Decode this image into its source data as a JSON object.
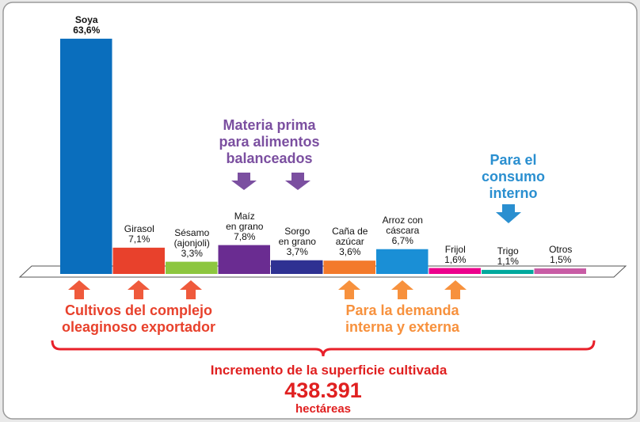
{
  "chart_data": {
    "type": "bar",
    "categories": [
      "Soya",
      "Girasol",
      "Sésamo\n(ajonjoli)",
      "Maíz\nen grano",
      "Sorgo\nen grano",
      "Caña de\nazúcar",
      "Arroz con\ncáscara",
      "Frijol",
      "Trigo",
      "Otros"
    ],
    "values": [
      63.6,
      7.1,
      3.3,
      7.8,
      3.7,
      3.6,
      6.7,
      1.6,
      1.1,
      1.5
    ],
    "value_labels": [
      "63,6%",
      "7,1%",
      "3,3%",
      "7,8%",
      "3,7%",
      "3,6%",
      "6,7%",
      "1,6%",
      "1,1%",
      "1,5%"
    ],
    "colors": [
      "#0a6ebd",
      "#e8412c",
      "#8dc63f",
      "#6a2c91",
      "#2e3192",
      "#f37a2b",
      "#1a8fd6",
      "#ec008c",
      "#00a99d",
      "#c85ca5"
    ],
    "ylim": [
      0,
      64
    ],
    "annotations": [
      "Materia prima\npara alimentos\nbalanceados",
      "Para el\nconsumo\ninterno",
      "Cultivos del complejo\noleaginoso exportador",
      "Para la demanda\ninterna y externa"
    ],
    "footer": {
      "title": "Incremento de la superficie cultivada",
      "value": "438.391",
      "unit": "hectáreas"
    }
  }
}
